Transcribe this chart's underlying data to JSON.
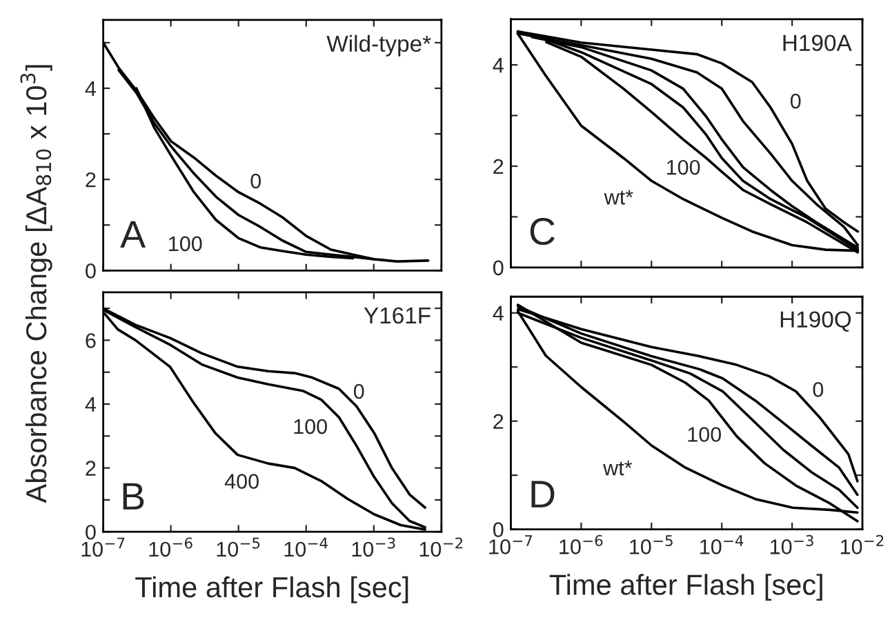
{
  "chart_data": [
    {
      "type": "line",
      "title": "Wild-type*",
      "ylabel": "Absorbance Change [ΔA$_{810}$ x 10$^{3}$]",
      "log": "x",
      "grid": false,
      "legend": false,
      "tick_labels": "y",
      "xlim": [
        1e-07,
        0.01
      ],
      "xticks": [
        {
          "value": 1e-07,
          "label": null
        },
        {
          "value": 1e-06,
          "label": null
        },
        {
          "value": 1e-05,
          "label": null
        },
        {
          "value": 0.0001,
          "label": null
        },
        {
          "value": 0.001,
          "label": null
        },
        {
          "value": 0.01,
          "label": null
        }
      ],
      "ylim": [
        0,
        5.5
      ],
      "yticks": [
        0,
        {
          "value": 1,
          "label": null
        },
        2,
        {
          "value": 3,
          "label": null
        },
        4,
        {
          "value": 5,
          "label": null
        }
      ],
      "annotations": [
        "A",
        "0",
        "100"
      ],
      "series": [
        {
          "color": "#000000",
          "x": [
            1e-07,
            1.69e-07,
            3.09e-07,
            5.65e-07,
            1e-06,
            2.19e-06,
            4.65e-06,
            1e-05,
            2.09e-05,
            4.44e-05,
            0.0001,
            0.000232,
            0.00049,
            0.001,
            0.00222,
            0.00637
          ],
          "values": [
            5.0,
            4.45,
            3.95,
            3.35,
            2.84,
            2.48,
            2.08,
            1.72,
            1.47,
            1.17,
            0.76,
            0.46,
            0.35,
            0.25,
            0.2,
            0.22
          ]
        },
        {
          "color": "#000000",
          "x": [
            1.69e-07,
            3.09e-07,
            5.65e-07,
            1e-06,
            2.19e-06,
            4.65e-06,
            1e-05,
            2.09e-05,
            4.44e-05,
            0.0001,
            0.000232,
            0.00049,
            0.001
          ],
          "values": [
            4.4,
            3.9,
            3.24,
            2.73,
            2.13,
            1.62,
            1.22,
            0.96,
            0.66,
            0.41,
            0.35,
            0.3,
            0.25
          ]
        },
        {
          "color": "#000000",
          "x": [
            3.09e-07,
            5.65e-07,
            1e-06,
            2.19e-06,
            4.65e-06,
            1e-05,
            2.09e-05,
            4.44e-05,
            0.0001,
            0.000232,
            0.00049
          ],
          "values": [
            4.0,
            3.14,
            2.53,
            1.72,
            1.11,
            0.71,
            0.51,
            0.43,
            0.35,
            0.3,
            0.27
          ]
        }
      ]
    },
    {
      "type": "line",
      "title": "Y161F",
      "xlabel": "Time after Flash [sec]",
      "log": "x",
      "grid": false,
      "legend": false,
      "xlim": [
        1e-07,
        0.01
      ],
      "xticks": [
        {
          "value": 1e-07,
          "label": "10$^{−7}$"
        },
        {
          "value": 1e-06,
          "label": "10$^{−6}$"
        },
        {
          "value": 1e-05,
          "label": "10$^{−5}$"
        },
        {
          "value": 0.0001,
          "label": "10$^{−4}$"
        },
        {
          "value": 0.001,
          "label": "10$^{−3}$"
        },
        {
          "value": 0.01,
          "label": "10$^{−2}$"
        }
      ],
      "ylim": [
        0,
        7.5
      ],
      "yticks": [
        0,
        {
          "value": 1,
          "label": null
        },
        2,
        {
          "value": 3,
          "label": null
        },
        4,
        {
          "value": 5,
          "label": null
        },
        6,
        {
          "value": 7,
          "label": null
        }
      ],
      "annotations": [
        "B",
        "0",
        "100",
        "400"
      ],
      "series": [
        {
          "color": "#000000",
          "x": [
            1.05e-07,
            3e-07,
            9.7e-07,
            2.87e-06,
            9.7e-06,
            2.74e-05,
            6.76e-05,
            0.000123,
            0.000305,
            0.000556,
            0.00101,
            0.00185,
            0.00338,
            0.00573
          ],
          "values": [
            6.97,
            6.48,
            6.07,
            5.59,
            5.17,
            5.03,
            4.97,
            4.83,
            4.48,
            3.93,
            3.1,
            2.0,
            1.17,
            0.76
          ]
        },
        {
          "color": "#000000",
          "x": [
            1.05e-07,
            3e-07,
            9.7e-07,
            2.87e-06,
            9.7e-06,
            2.74e-05,
            9.12e-05,
            0.000167,
            0.000305,
            0.000556,
            0.00101,
            0.00185,
            0.00338,
            0.00573
          ],
          "values": [
            6.93,
            6.41,
            5.86,
            5.24,
            4.83,
            4.62,
            4.41,
            4.14,
            3.59,
            2.69,
            1.72,
            0.9,
            0.34,
            0.14
          ]
        },
        {
          "color": "#000000",
          "x": [
            1.05e-07,
            1.64e-07,
            3e-07,
            9.7e-07,
            2.12e-06,
            4.5e-06,
            9.7e-06,
            2.74e-05,
            6.76e-05,
            0.000167,
            0.000411,
            0.00101,
            0.0025,
            0.00573
          ],
          "values": [
            6.83,
            6.34,
            6.0,
            5.17,
            4.07,
            3.1,
            2.41,
            2.14,
            2.0,
            1.59,
            1.03,
            0.55,
            0.21,
            0.07
          ]
        }
      ]
    },
    {
      "type": "line",
      "title": "H190A",
      "log": "x",
      "grid": false,
      "legend": false,
      "tick_labels": "y",
      "xlim": [
        1e-07,
        0.01
      ],
      "xticks": [
        {
          "value": 1e-07,
          "label": null
        },
        {
          "value": 1e-06,
          "label": null
        },
        {
          "value": 1e-05,
          "label": null
        },
        {
          "value": 0.0001,
          "label": null
        },
        {
          "value": 0.001,
          "label": null
        },
        {
          "value": 0.01,
          "label": null
        }
      ],
      "ylim": [
        0,
        4.9
      ],
      "yticks": [
        0,
        {
          "value": 1,
          "label": null
        },
        2,
        {
          "value": 3,
          "label": null
        },
        4
      ],
      "annotations": [
        "C",
        "0",
        "100",
        "wt*"
      ],
      "series": [
        {
          "color": "#000000",
          "x": [
            1.25e-07,
            1e-06,
            1e-05,
            4.44e-05,
            0.0001,
            0.00027,
            0.000493,
            0.001,
            0.00164,
            0.003,
            0.00548,
            0.0086
          ],
          "values": [
            4.66,
            4.44,
            4.3,
            4.21,
            4.03,
            3.66,
            3.16,
            2.44,
            1.71,
            1.16,
            0.89,
            0.71
          ]
        },
        {
          "color": "#000000",
          "x": [
            1.25e-07,
            1e-06,
            1e-05,
            4.44e-05,
            0.0001,
            0.0002,
            0.000493,
            0.001,
            0.00222,
            0.00548,
            0.0086
          ],
          "values": [
            4.62,
            4.39,
            4.12,
            3.85,
            3.53,
            2.89,
            2.25,
            1.71,
            1.25,
            0.8,
            0.44
          ]
        },
        {
          "color": "#000000",
          "x": [
            2e-07,
            1e-06,
            1e-05,
            2.82e-05,
            6e-05,
            0.0001,
            0.0002,
            0.000493,
            0.001,
            0.00222,
            0.0086
          ],
          "values": [
            4.55,
            4.35,
            3.89,
            3.53,
            2.98,
            2.53,
            1.98,
            1.53,
            1.21,
            0.89,
            0.39
          ]
        },
        {
          "color": "#000000",
          "x": [
            2.5e-07,
            1e-06,
            1e-05,
            2.82e-05,
            6e-05,
            0.0001,
            0.0002,
            0.000493,
            0.00164,
            0.0086
          ],
          "values": [
            4.55,
            4.25,
            3.62,
            3.16,
            2.62,
            2.16,
            1.71,
            1.35,
            0.98,
            0.35
          ]
        },
        {
          "color": "#000000",
          "x": [
            3.2e-07,
            1e-06,
            4e-06,
            1e-05,
            2.82e-05,
            6e-05,
            0.0001,
            0.0002,
            0.000493,
            0.00164,
            0.0086
          ],
          "values": [
            4.45,
            4.16,
            3.53,
            3.07,
            2.53,
            2.16,
            1.89,
            1.53,
            1.25,
            0.89,
            0.3
          ]
        },
        {
          "color": "#000000",
          "x": [
            1.25e-07,
            3.09e-07,
            1e-06,
            4e-06,
            1e-05,
            2.82e-05,
            0.0001,
            0.00027,
            0.001,
            0.003,
            0.0086
          ],
          "values": [
            4.62,
            3.8,
            2.8,
            2.16,
            1.71,
            1.35,
            0.98,
            0.71,
            0.44,
            0.35,
            0.33
          ]
        }
      ]
    },
    {
      "type": "line",
      "title": "H190Q",
      "xlabel": "Time after Flash [sec]",
      "log": "x",
      "grid": false,
      "legend": false,
      "xlim": [
        1e-07,
        0.01
      ],
      "xticks": [
        {
          "value": 1e-07,
          "label": "10$^{−7}$"
        },
        {
          "value": 1e-06,
          "label": "10$^{−6}$"
        },
        {
          "value": 1e-05,
          "label": "10$^{−5}$"
        },
        {
          "value": 0.0001,
          "label": "10$^{−4}$"
        },
        {
          "value": 0.001,
          "label": "10$^{−3}$"
        },
        {
          "value": 0.01,
          "label": "10$^{−2}$"
        }
      ],
      "ylim": [
        0,
        4.3
      ],
      "yticks": [
        0,
        {
          "value": 1,
          "label": null
        },
        2,
        {
          "value": 3,
          "label": null
        },
        4
      ],
      "annotations": [
        "D",
        "0",
        "100",
        "wt*"
      ],
      "series": [
        {
          "color": "#000000",
          "x": [
            1.26e-07,
            1e-06,
            1e-05,
            4.8e-05,
            0.000163,
            0.000473,
            0.00113,
            0.00254,
            0.00632,
            0.0085
          ],
          "values": [
            4.07,
            3.7,
            3.37,
            3.2,
            3.04,
            2.83,
            2.55,
            2.05,
            1.39,
            0.89
          ]
        },
        {
          "color": "#000000",
          "x": [
            1.26e-07,
            1e-06,
            1e-05,
            4.8e-05,
            0.000103,
            0.0003,
            0.000748,
            0.00187,
            0.00467,
            0.0085
          ],
          "values": [
            4.12,
            3.62,
            3.2,
            2.96,
            2.79,
            2.38,
            1.97,
            1.55,
            1.14,
            0.64
          ]
        },
        {
          "color": "#000000",
          "x": [
            1.26e-07,
            1e-06,
            1e-05,
            3.55e-05,
            0.000103,
            0.0003,
            0.000748,
            0.00187,
            0.00467,
            0.0085
          ],
          "values": [
            4.0,
            3.54,
            3.12,
            2.88,
            2.55,
            1.97,
            1.47,
            1.06,
            0.73,
            0.4
          ]
        },
        {
          "color": "#000000",
          "x": [
            1.26e-07,
            1e-06,
            1e-05,
            3.04e-05,
            6.53e-05,
            0.000163,
            0.000407,
            0.00113,
            0.00344,
            0.0085
          ],
          "values": [
            4.15,
            3.45,
            3.04,
            2.71,
            2.38,
            1.72,
            1.22,
            0.81,
            0.48,
            0.15
          ]
        },
        {
          "color": "#000000",
          "x": [
            1.26e-07,
            3.14e-07,
            1e-06,
            4.2e-06,
            1e-05,
            3.04e-05,
            0.000103,
            0.0003,
            0.00102,
            0.00344,
            0.0085
          ],
          "values": [
            4.03,
            3.21,
            2.63,
            1.97,
            1.55,
            1.14,
            0.81,
            0.56,
            0.4,
            0.36,
            0.31
          ]
        }
      ]
    }
  ]
}
